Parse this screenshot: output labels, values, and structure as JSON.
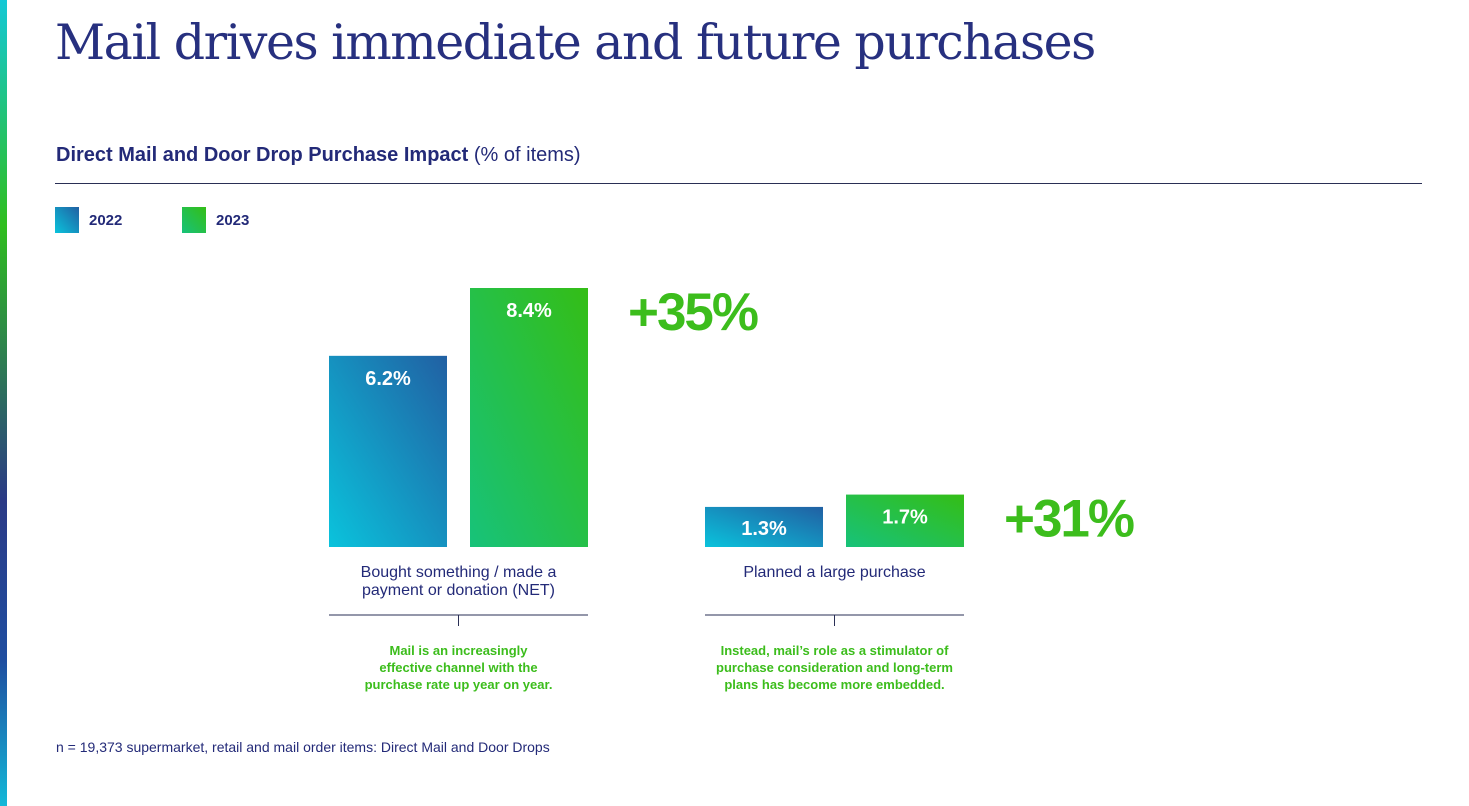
{
  "page": {
    "title": "Mail drives immediate and future purchases",
    "subtitle_main": "Direct Mail and Door Drop Purchase Impact",
    "subtitle_note": "(% of items)",
    "footnote": "n = 19,373 supermarket, retail and mail order items: Direct Mail and Door Drops"
  },
  "colors": {
    "accent_green": "#3cbd1c",
    "text_navy": "#232a78",
    "bar_2022_from": "#0ac3dc",
    "bar_2022_to": "#2160a3",
    "bar_2023_from": "#17c27a",
    "bar_2023_to": "#34be16"
  },
  "chart_data": {
    "type": "bar",
    "unit": "%",
    "categories": [
      [
        "Bought something / made a",
        "payment or donation (NET)"
      ],
      [
        "Planned a large purchase"
      ]
    ],
    "series": [
      {
        "name": "2022",
        "values": [
          6.2,
          1.3
        ],
        "labels": [
          "6.2%",
          "1.3%"
        ]
      },
      {
        "name": "2023",
        "values": [
          8.4,
          1.7
        ],
        "labels": [
          "8.4%",
          "1.7%"
        ]
      }
    ],
    "changes": [
      "+35%",
      "+31%"
    ],
    "notes": [
      [
        "Mail is an increasingly",
        "effective channel with the",
        "purchase rate up year on year."
      ],
      [
        "Instead, mail’s role as a stimulator of",
        "purchase consideration and long-term",
        "plans has become more embedded."
      ]
    ],
    "legend_position": "top-left",
    "grid": false
  }
}
